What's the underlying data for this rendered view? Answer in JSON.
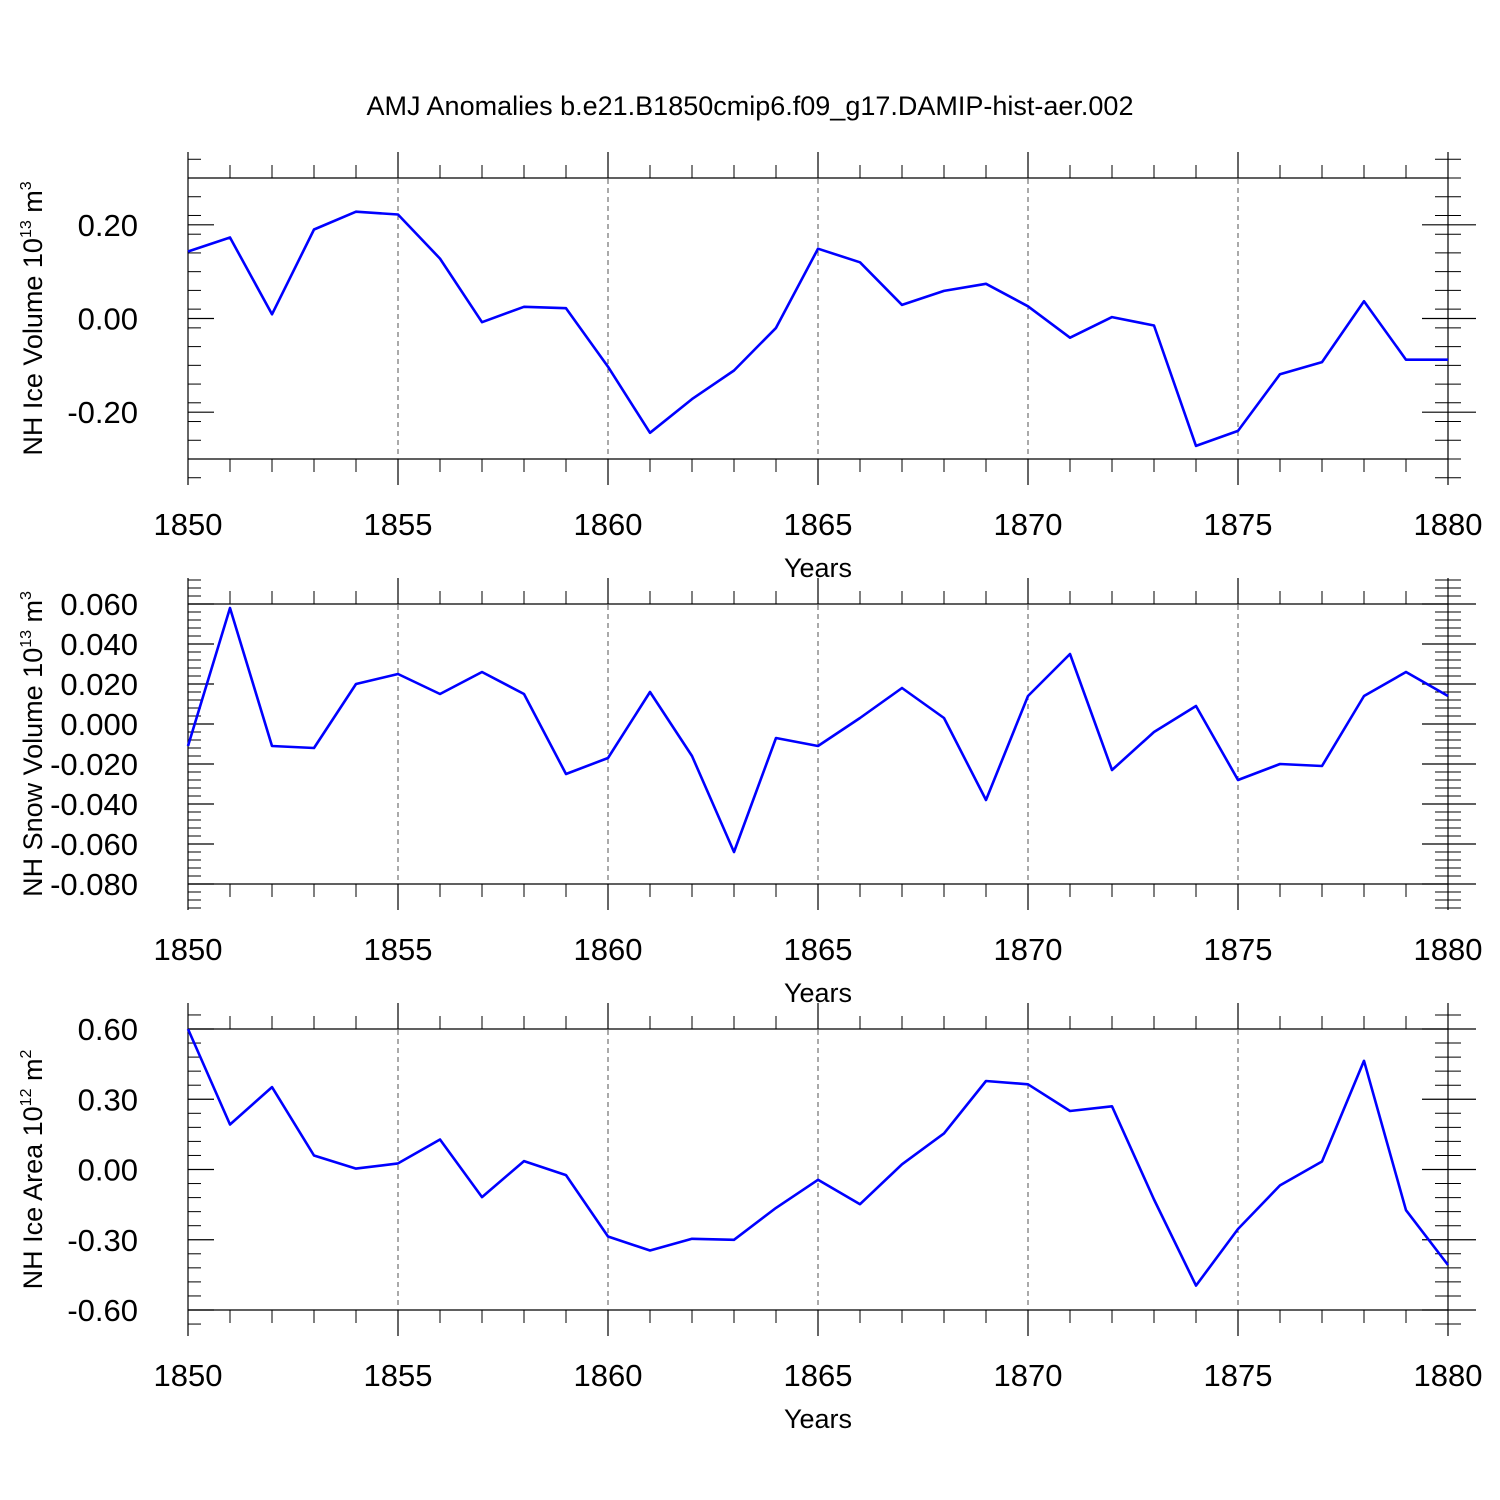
{
  "chart_data": {
    "type": "line",
    "title": "AMJ Anomalies b.e21.B1850cmip6.f09_g17.DAMIP-hist-aer.002",
    "line_color": "#0000ff",
    "x_ticks": [
      "1850",
      "1855",
      "1860",
      "1865",
      "1870",
      "1875",
      "1880"
    ],
    "panels": [
      {
        "ylabel": {
          "main": "NH Ice Volume 10",
          "exp": "13",
          "unit": " m",
          "unit_exp": "3"
        },
        "xlabel": "Years",
        "xlim": [
          1850,
          1880
        ],
        "ylim": [
          -0.3,
          0.3
        ],
        "y_ticks": [
          -0.2,
          0.0,
          0.2
        ],
        "y_tick_labels": [
          "-0.20",
          "0.00",
          "0.20"
        ],
        "grid_x": [
          1855,
          1860,
          1865,
          1870,
          1875
        ],
        "x": [
          1850,
          1851,
          1852,
          1853,
          1854,
          1855,
          1856,
          1857,
          1858,
          1859,
          1860,
          1861,
          1862,
          1863,
          1864,
          1865,
          1866,
          1867,
          1868,
          1869,
          1870,
          1871,
          1872,
          1873,
          1874,
          1875,
          1876,
          1877,
          1878,
          1879,
          1880
        ],
        "values": [
          0.143,
          0.173,
          0.009,
          0.19,
          0.228,
          0.222,
          0.128,
          -0.008,
          0.025,
          0.022,
          -0.103,
          -0.244,
          -0.172,
          -0.111,
          -0.02,
          0.149,
          0.12,
          0.029,
          0.059,
          0.074,
          0.026,
          -0.041,
          0.003,
          -0.015,
          -0.272,
          -0.24,
          -0.119,
          -0.093,
          0.037,
          -0.088,
          -0.088
        ]
      },
      {
        "ylabel": {
          "main": "NH Snow Volume 10",
          "exp": "13",
          "unit": " m",
          "unit_exp": "3"
        },
        "xlabel": "Years",
        "xlim": [
          1850,
          1880
        ],
        "ylim": [
          -0.08,
          0.06
        ],
        "y_ticks": [
          -0.08,
          -0.06,
          -0.04,
          -0.02,
          0.0,
          0.02,
          0.04,
          0.06
        ],
        "y_tick_labels": [
          "-0.080",
          "-0.060",
          "-0.040",
          "-0.020",
          "0.000",
          "0.020",
          "0.040",
          "0.060"
        ],
        "grid_x": [
          1855,
          1860,
          1865,
          1870,
          1875
        ],
        "x": [
          1850,
          1851,
          1852,
          1853,
          1854,
          1855,
          1856,
          1857,
          1858,
          1859,
          1860,
          1861,
          1862,
          1863,
          1864,
          1865,
          1866,
          1867,
          1868,
          1869,
          1870,
          1871,
          1872,
          1873,
          1874,
          1875,
          1876,
          1877,
          1878,
          1879,
          1880
        ],
        "values": [
          -0.011,
          0.058,
          -0.011,
          -0.012,
          0.02,
          0.025,
          0.015,
          0.026,
          0.015,
          -0.025,
          -0.017,
          0.016,
          -0.016,
          -0.064,
          -0.007,
          -0.011,
          0.003,
          0.018,
          0.003,
          -0.038,
          0.014,
          0.035,
          -0.023,
          -0.004,
          0.009,
          -0.028,
          -0.02,
          -0.021,
          0.014,
          0.026,
          0.014
        ]
      },
      {
        "ylabel": {
          "main": "NH Ice Area 10",
          "exp": "12",
          "unit": " m",
          "unit_exp": "2"
        },
        "xlabel": "Years",
        "xlim": [
          1850,
          1880
        ],
        "ylim": [
          -0.6,
          0.6
        ],
        "y_ticks": [
          -0.6,
          -0.3,
          0.0,
          0.3,
          0.6
        ],
        "y_tick_labels": [
          "-0.60",
          "-0.30",
          "0.00",
          "0.30",
          "0.60"
        ],
        "grid_x": [
          1855,
          1860,
          1865,
          1870,
          1875
        ],
        "x": [
          1850,
          1851,
          1852,
          1853,
          1854,
          1855,
          1856,
          1857,
          1858,
          1859,
          1860,
          1861,
          1862,
          1863,
          1864,
          1865,
          1866,
          1867,
          1868,
          1869,
          1870,
          1871,
          1872,
          1873,
          1874,
          1875,
          1876,
          1877,
          1878,
          1879,
          1880
        ],
        "values": [
          0.6,
          0.192,
          0.352,
          0.06,
          0.004,
          0.026,
          0.128,
          -0.118,
          0.036,
          -0.024,
          -0.286,
          -0.346,
          -0.296,
          -0.3,
          -0.164,
          -0.044,
          -0.148,
          0.022,
          0.154,
          0.378,
          0.364,
          0.25,
          0.27,
          -0.128,
          -0.496,
          -0.254,
          -0.068,
          0.034,
          0.464,
          -0.174,
          -0.408
        ]
      }
    ]
  }
}
